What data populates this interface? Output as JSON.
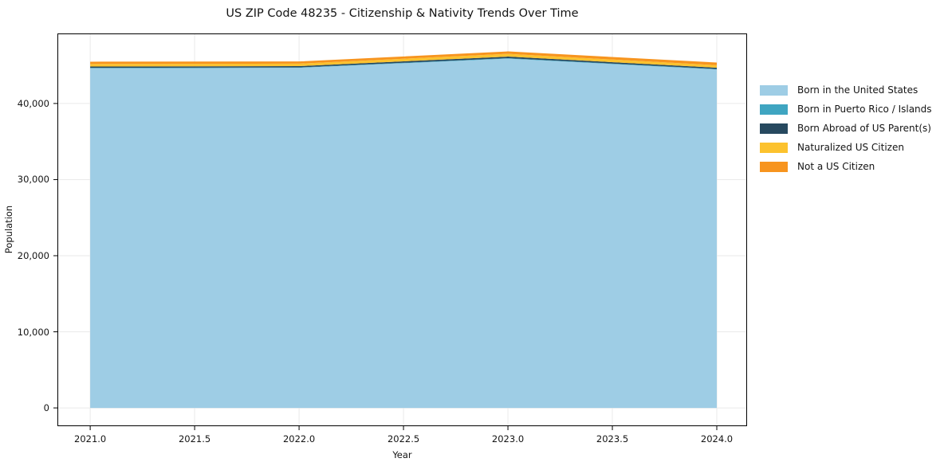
{
  "chart_data": {
    "type": "area",
    "stacked": true,
    "title": "US ZIP Code 48235 - Citizenship & Nativity Trends Over Time",
    "xlabel": "Year",
    "ylabel": "Population",
    "x": [
      2021,
      2022,
      2023,
      2024
    ],
    "series": [
      {
        "name": "Born in the United States",
        "color": "#9ecde5",
        "values": [
          44620,
          44680,
          45890,
          44470
        ]
      },
      {
        "name": "Born in Puerto Rico / Islands",
        "color": "#3fa5c1",
        "values": [
          60,
          60,
          70,
          60
        ]
      },
      {
        "name": "Born Abroad of US Parent(s)",
        "color": "#27495f",
        "values": [
          180,
          170,
          200,
          170
        ]
      },
      {
        "name": "Naturalized US Citizen",
        "color": "#fcc22e",
        "values": [
          330,
          320,
          360,
          330
        ]
      },
      {
        "name": "Not a US Citizen",
        "color": "#f7941e",
        "values": [
          300,
          290,
          320,
          350
        ]
      }
    ],
    "xticks": {
      "values": [
        2021.0,
        2021.5,
        2022.0,
        2022.5,
        2023.0,
        2023.5,
        2024.0
      ],
      "labels": [
        "2021.0",
        "2021.5",
        "2022.0",
        "2022.5",
        "2023.0",
        "2023.5",
        "2024.0"
      ]
    },
    "yticks": {
      "values": [
        0,
        10000,
        20000,
        30000,
        40000
      ],
      "labels": [
        "0",
        "10,000",
        "20,000",
        "30,000",
        "40,000"
      ]
    },
    "xlim": [
      2020.843,
      2024.145
    ],
    "ylim": [
      -2400,
      49200
    ],
    "grid": true,
    "grid_color": "#eaeaea",
    "spine_color": "#000000",
    "legend_position": "right-outside",
    "legend_frame": false
  }
}
